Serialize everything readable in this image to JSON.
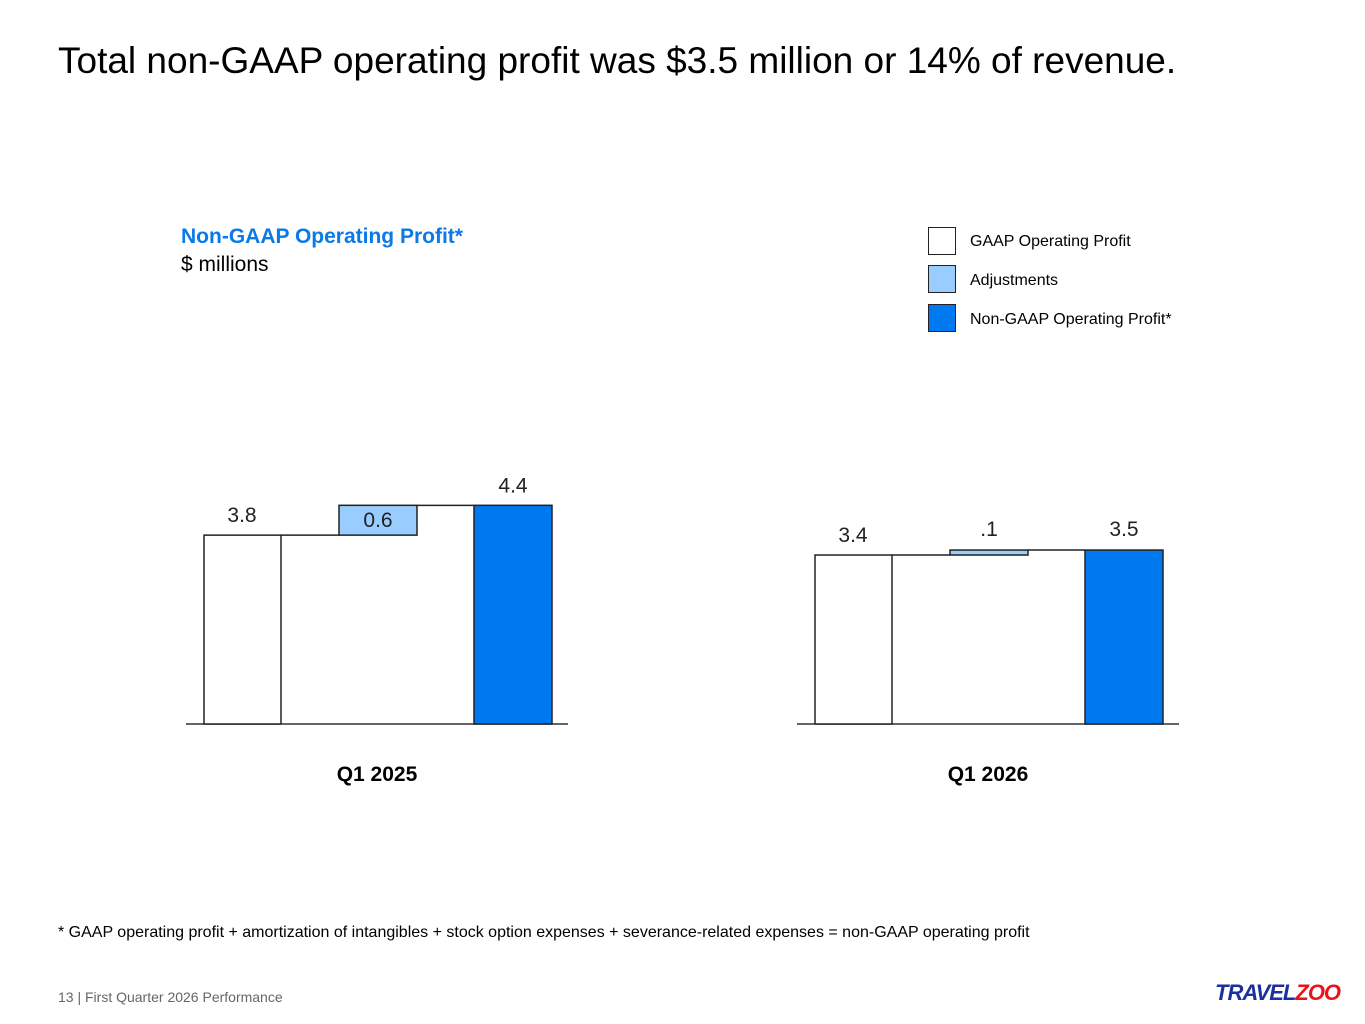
{
  "title": "Total non-GAAP operating profit was $3.5 million or 14% of revenue.",
  "subtitle": "Non-GAAP Operating Profit*",
  "units": "$ millions",
  "footnote": "* GAAP operating profit + amortization of intangibles + stock option expenses + severance-related expenses  = non-GAAP operating profit",
  "page_label": "13 | First Quarter 2026 Performance",
  "logo": {
    "part1": "TRAVEL",
    "part2": "ZOO"
  },
  "colors": {
    "gaap": "#ffffff",
    "adjust": "#99ccff",
    "nongaap": "#0078f0"
  },
  "chart_data": {
    "type": "bar",
    "subtype": "waterfall",
    "title": "Non-GAAP Operating Profit*",
    "ylabel": "$ millions",
    "legend": [
      "GAAP Operating Profit",
      "Adjustments",
      "Non-GAAP Operating Profit*"
    ],
    "legend_position": "top-right",
    "groups": [
      {
        "category": "Q1 2025",
        "gaap": 3.8,
        "adjustments": 0.6,
        "nongaap": 4.4,
        "labels": [
          "3.8",
          "0.6",
          "4.4"
        ]
      },
      {
        "category": "Q1 2026",
        "gaap": 3.4,
        "adjustments": 0.1,
        "nongaap": 3.5,
        "labels": [
          "3.4",
          ".1",
          "3.5"
        ]
      }
    ]
  }
}
